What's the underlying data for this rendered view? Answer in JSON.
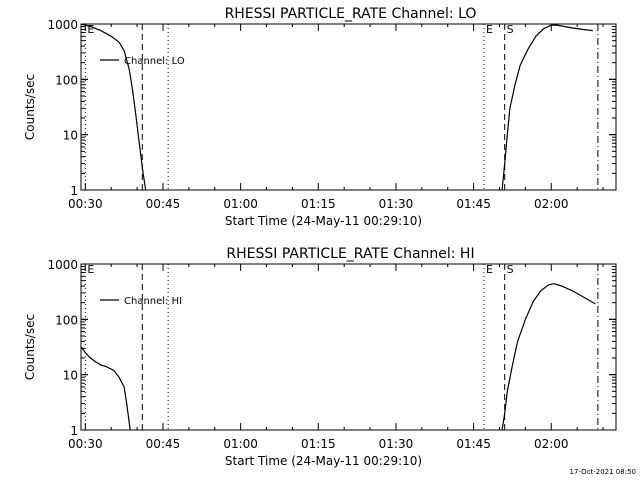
{
  "footer": {
    "timestamp": "17-Oct-2021 08:50"
  },
  "chart_data": [
    {
      "type": "line",
      "title": "RHESSI PARTICLE_RATE Channel: LO",
      "xlabel": "Start Time (24-May-11 00:29:10)",
      "ylabel": "Counts/sec",
      "yscale": "log",
      "xlim": [
        "00:29:10",
        "02:12:30"
      ],
      "ylim": [
        1,
        1000
      ],
      "xticks": [
        "00:30",
        "00:45",
        "01:00",
        "01:15",
        "01:30",
        "01:45",
        "02:00"
      ],
      "yticks": [
        "1",
        "10",
        "100",
        "1000"
      ],
      "legend": {
        "label": "Channel: LO",
        "position": "top-left"
      },
      "markers": [
        {
          "time": "00:30",
          "label": "E",
          "style": "dotted"
        },
        {
          "time": "00:41",
          "label": "",
          "style": "dashed"
        },
        {
          "time": "00:46",
          "label": "",
          "style": "dotted"
        },
        {
          "time": "01:47",
          "label": "E",
          "style": "dotted"
        },
        {
          "time": "01:51",
          "label": "S",
          "style": "dashed"
        },
        {
          "time": "02:09",
          "label": "",
          "style": "dashdot"
        }
      ],
      "series": [
        {
          "segments": [
            [
              [
                "00:29:10",
                1000
              ],
              [
                "00:31:00",
                900
              ],
              [
                "00:33:00",
                760
              ],
              [
                "00:35:00",
                600
              ],
              [
                "00:36:30",
                470
              ],
              [
                "00:37:30",
                330
              ],
              [
                "00:38:30",
                150
              ],
              [
                "00:39:10",
                60
              ],
              [
                "00:39:50",
                20
              ],
              [
                "00:40:30",
                6
              ],
              [
                "00:41:10",
                2
              ],
              [
                "00:41:40",
                1
              ]
            ],
            [
              [
                "01:50:30",
                1
              ],
              [
                "01:51:00",
                3
              ],
              [
                "01:51:30",
                10
              ],
              [
                "01:52:00",
                30
              ],
              [
                "01:53:00",
                80
              ],
              [
                "01:54:00",
                180
              ],
              [
                "01:55:30",
                350
              ],
              [
                "01:57:00",
                600
              ],
              [
                "01:58:30",
                820
              ],
              [
                "02:00:00",
                950
              ],
              [
                "02:01:00",
                960
              ],
              [
                "02:02:30",
                900
              ],
              [
                "02:04:00",
                850
              ],
              [
                "02:06:00",
                800
              ],
              [
                "02:08:00",
                760
              ]
            ]
          ]
        }
      ]
    },
    {
      "type": "line",
      "title": "RHESSI PARTICLE_RATE Channel: HI",
      "xlabel": "Start Time (24-May-11 00:29:10)",
      "ylabel": "Counts/sec",
      "yscale": "log",
      "xlim": [
        "00:29:10",
        "02:12:30"
      ],
      "ylim": [
        1,
        1000
      ],
      "xticks": [
        "00:30",
        "00:45",
        "01:00",
        "01:15",
        "01:30",
        "01:45",
        "02:00"
      ],
      "yticks": [
        "1",
        "10",
        "100",
        "1000"
      ],
      "legend": {
        "label": "Channel: HI",
        "position": "top-left"
      },
      "markers": [
        {
          "time": "00:30",
          "label": "E",
          "style": "dotted"
        },
        {
          "time": "00:41",
          "label": "",
          "style": "dashed"
        },
        {
          "time": "00:46",
          "label": "",
          "style": "dotted"
        },
        {
          "time": "01:47",
          "label": "E",
          "style": "dotted"
        },
        {
          "time": "01:51",
          "label": "S",
          "style": "dashed"
        },
        {
          "time": "02:09",
          "label": "",
          "style": "dashdot"
        }
      ],
      "series": [
        {
          "segments": [
            [
              [
                "00:29:10",
                32
              ],
              [
                "00:30:00",
                25
              ],
              [
                "00:31:00",
                20
              ],
              [
                "00:32:00",
                17
              ],
              [
                "00:33:00",
                15
              ],
              [
                "00:34:00",
                14
              ],
              [
                "00:35:30",
                12
              ],
              [
                "00:36:30",
                9
              ],
              [
                "00:37:30",
                6
              ],
              [
                "00:38:00",
                3
              ],
              [
                "00:38:40",
                1
              ]
            ],
            [
              [
                "01:50:30",
                1
              ],
              [
                "01:51:00",
                2
              ],
              [
                "01:51:30",
                5
              ],
              [
                "01:52:30",
                15
              ],
              [
                "01:53:30",
                40
              ],
              [
                "01:55:00",
                100
              ],
              [
                "01:56:30",
                210
              ],
              [
                "01:58:00",
                330
              ],
              [
                "01:59:30",
                420
              ],
              [
                "02:00:30",
                440
              ],
              [
                "02:02:00",
                400
              ],
              [
                "02:04:00",
                330
              ],
              [
                "02:06:00",
                260
              ],
              [
                "02:07:30",
                215
              ],
              [
                "02:08:30",
                190
              ]
            ]
          ]
        }
      ]
    }
  ]
}
